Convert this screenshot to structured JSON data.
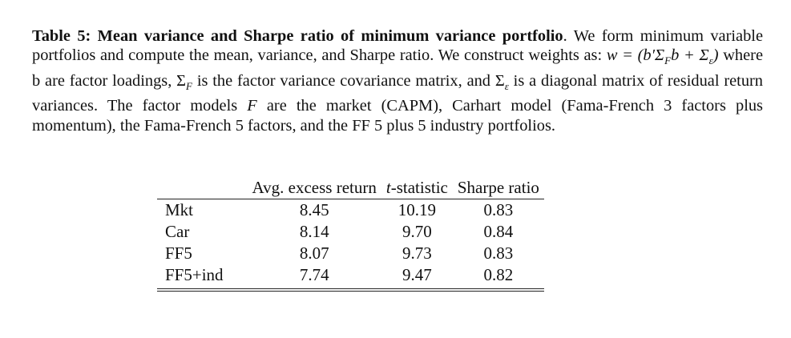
{
  "caption": {
    "label": "Table 5: Mean variance and Sharpe ratio of minimum variance portfolio",
    "text_1": ". We form mini­mum variable portfolios and compute the mean, variance, and Sharpe ratio. We construct weights as: ",
    "formula": "w = (b′Σ",
    "formula_sub_f": "F",
    "formula_mid": "b + Σ",
    "formula_sub_e": "ε",
    "formula_end": ")",
    "text_2": " where b are factor loadings, Σ",
    "sigma_f_sub": "F",
    "text_3": " is the factor variance covariance matrix, and Σ",
    "sigma_e_sub": "ε",
    "text_4": " is a diagonal matrix of residual return variances. The factor models ",
    "f_symbol": "F",
    "text_5": " are the market (CAPM), Carhart model (Fama-French 3 factors plus momentum), the Fama-French 5 factors, and the FF 5 plus 5 industry portfolios."
  },
  "table": {
    "headers": [
      "Avg. excess return",
      "t",
      "-statistic",
      "Sharpe ratio"
    ],
    "rows": [
      {
        "label": "Mkt",
        "avg": "8.45",
        "tstat": "10.19",
        "sharpe": "0.83"
      },
      {
        "label": "Car",
        "avg": "8.14",
        "tstat": "9.70",
        "sharpe": "0.84"
      },
      {
        "label": "FF5",
        "avg": "8.07",
        "tstat": "9.73",
        "sharpe": "0.83"
      },
      {
        "label": "FF5+ind",
        "avg": "7.74",
        "tstat": "9.47",
        "sharpe": "0.82"
      }
    ]
  }
}
